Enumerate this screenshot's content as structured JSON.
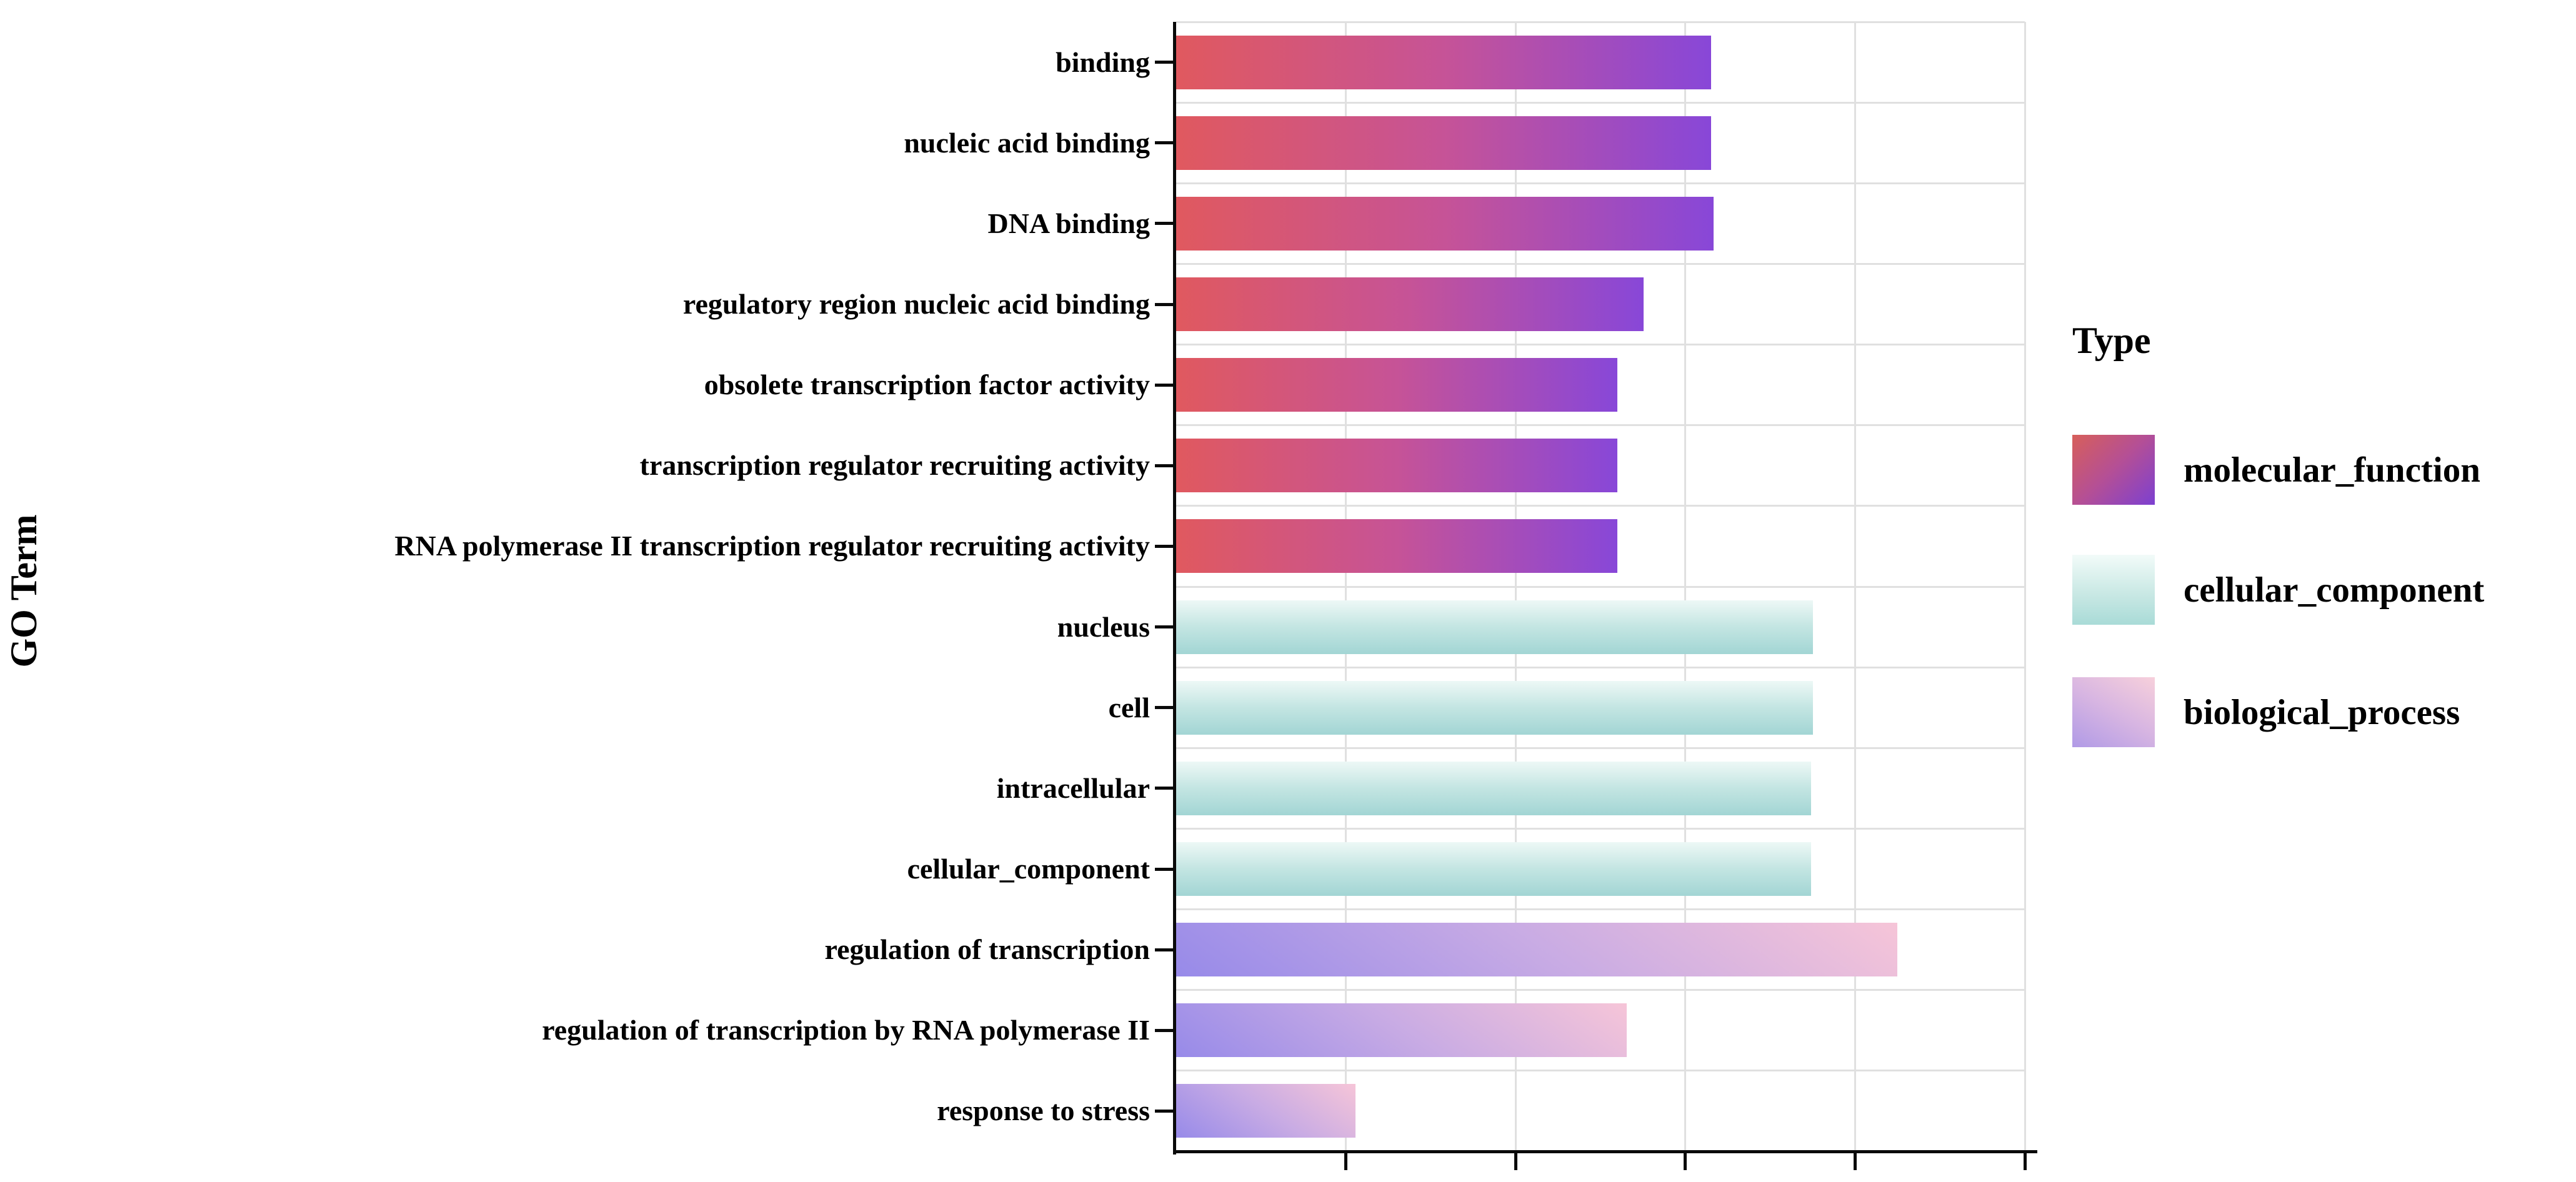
{
  "figure": {
    "background": "#ffffff",
    "y_axis_title": "GO Term",
    "x_axis_title": "",
    "x_tick_labels_visible": false
  },
  "legend": {
    "title": "Type",
    "entries": [
      {
        "key": "molecular_function",
        "label": "molecular_function"
      },
      {
        "key": "cellular_component",
        "label": "cellular_component"
      },
      {
        "key": "biological_process",
        "label": "biological_process"
      }
    ]
  },
  "colors": {
    "molecular_function": {
      "bar_gradient": [
        "#e0595f",
        "#c65397",
        "#8847d8"
      ],
      "bar_direction": "90deg",
      "legend_gradient": [
        "#d75f5a",
        "#b44f96",
        "#7c40d1"
      ],
      "legend_direction": "135deg"
    },
    "cellular_component": {
      "bar_gradient": [
        "#edf8f6",
        "#c3e5e2",
        "#a2d5d4"
      ],
      "bar_direction": "180deg",
      "legend_gradient": [
        "#f2fbf9",
        "#cdeae6",
        "#a9dbd7"
      ],
      "legend_direction": "180deg"
    },
    "biological_process": {
      "bar_gradient": [
        "#978ae9",
        "#c8abe4",
        "#f6c5d8"
      ],
      "bar_direction": "35deg",
      "legend_gradient": [
        "#f7d0db",
        "#d7b5e2",
        "#b09ae6"
      ],
      "legend_direction": "210deg"
    },
    "gridline": "#e0e0e0",
    "axis_line": "#0a0a0a",
    "text": "#000000"
  },
  "chart_data": {
    "type": "bar",
    "orientation": "horizontal",
    "title": "",
    "ylabel": "GO Term",
    "xlabel": "",
    "xlim_pct": [
      0,
      100
    ],
    "x_ticks_pct": [
      20,
      40,
      60,
      80,
      100
    ],
    "x_axis_note": "x axis ticks and gridlines at every 20% of axis width; numeric tick labels not visible in image",
    "grid": "vertical gridlines at ticks, horizontal gridlines between category rows",
    "legend_position": "right",
    "legend_title": "Type",
    "bars": [
      {
        "label": "binding",
        "group": "molecular_function",
        "value_pct": 63.0
      },
      {
        "label": "nucleic acid binding",
        "group": "molecular_function",
        "value_pct": 63.0
      },
      {
        "label": "DNA binding",
        "group": "molecular_function",
        "value_pct": 63.3
      },
      {
        "label": "regulatory region nucleic acid binding",
        "group": "molecular_function",
        "value_pct": 55.1
      },
      {
        "label": "obsolete transcription factor activity",
        "group": "molecular_function",
        "value_pct": 52.0
      },
      {
        "label": "transcription regulator recruiting activity",
        "group": "molecular_function",
        "value_pct": 52.0
      },
      {
        "label": "RNA polymerase II transcription regulator recruiting activity",
        "group": "molecular_function",
        "value_pct": 52.0
      },
      {
        "label": "nucleus",
        "group": "cellular_component",
        "value_pct": 75.0
      },
      {
        "label": "cell",
        "group": "cellular_component",
        "value_pct": 75.0
      },
      {
        "label": "intracellular",
        "group": "cellular_component",
        "value_pct": 74.8
      },
      {
        "label": "cellular_component",
        "group": "cellular_component",
        "value_pct": 74.8
      },
      {
        "label": "regulation of transcription",
        "group": "biological_process",
        "value_pct": 85.0
      },
      {
        "label": "regulation of transcription by RNA polymerase II",
        "group": "biological_process",
        "value_pct": 53.1
      },
      {
        "label": "response to stress",
        "group": "biological_process",
        "value_pct": 21.1
      }
    ]
  }
}
